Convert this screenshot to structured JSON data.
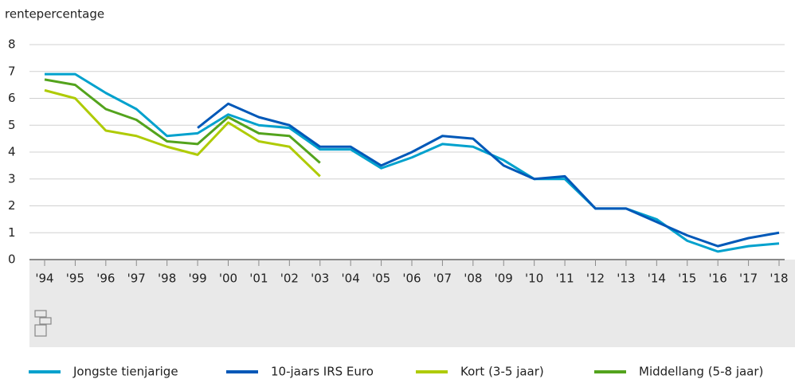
{
  "chart_data": {
    "type": "line",
    "y_label": "rentepercentage",
    "categories": [
      "'94",
      "'95",
      "'96",
      "'97",
      "'98",
      "'99",
      "'00",
      "'01",
      "'02",
      "'03",
      "'04",
      "'05",
      "'06",
      "'07",
      "'08",
      "'09",
      "'10",
      "'11",
      "'12",
      "'13",
      "'14",
      "'15",
      "'16",
      "'17",
      "'18"
    ],
    "series": [
      {
        "name": "Jongste tienjarige",
        "color": "#00a1cd",
        "values": [
          6.9,
          6.9,
          6.2,
          5.6,
          4.6,
          4.7,
          5.4,
          5.0,
          4.9,
          4.1,
          4.1,
          3.4,
          3.8,
          4.3,
          4.2,
          3.7,
          3.0,
          3.0,
          1.9,
          1.9,
          1.5,
          0.7,
          0.3,
          0.5,
          0.6
        ]
      },
      {
        "name": "10-jaars IRS Euro",
        "color": "#0058b8",
        "values": [
          null,
          null,
          null,
          null,
          null,
          4.9,
          5.8,
          5.3,
          5.0,
          4.2,
          4.2,
          3.5,
          4.0,
          4.6,
          4.5,
          3.5,
          3.0,
          3.1,
          1.9,
          1.9,
          1.4,
          0.9,
          0.5,
          0.8,
          1.0
        ]
      },
      {
        "name": "Kort (3-5 jaar)",
        "color": "#afcb05",
        "values": [
          6.3,
          6.0,
          4.8,
          4.6,
          4.2,
          3.9,
          5.1,
          4.4,
          4.2,
          3.1,
          null,
          null,
          null,
          null,
          null,
          null,
          null,
          null,
          null,
          null,
          null,
          null,
          null,
          null,
          null
        ]
      },
      {
        "name": "Middellang (5-8 jaar)",
        "color": "#53a31d",
        "values": [
          6.7,
          6.5,
          5.6,
          5.2,
          4.4,
          4.3,
          5.3,
          4.7,
          4.6,
          3.6,
          null,
          null,
          null,
          null,
          null,
          null,
          null,
          null,
          null,
          null,
          null,
          null,
          null,
          null,
          null
        ]
      }
    ],
    "ylim": [
      0,
      8
    ],
    "yticks": [
      0,
      1,
      2,
      3,
      4,
      5,
      6,
      7,
      8
    ],
    "grid": true
  }
}
